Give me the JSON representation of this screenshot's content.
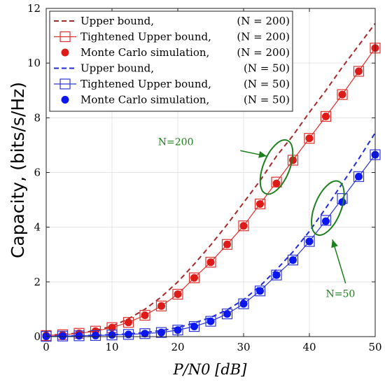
{
  "chart_data": {
    "type": "line",
    "title": "",
    "xlabel": "P/N0 [dB]",
    "ylabel": "Capacity, (bits/s/Hz)",
    "xlim": [
      0,
      50
    ],
    "ylim": [
      0,
      12
    ],
    "xticks": [
      0,
      10,
      20,
      30,
      40,
      50
    ],
    "yticks": [
      0,
      2,
      4,
      6,
      8,
      10,
      12
    ],
    "grid": true,
    "legend_position": "top-left",
    "series": [
      {
        "name": "Upper bound,",
        "param": "(N = 200)",
        "style": "dashed",
        "color": "#A52A2A",
        "x": [
          0,
          2.5,
          5,
          7.5,
          10,
          12.5,
          15,
          17.5,
          20,
          22.5,
          25,
          27.5,
          30,
          32.5,
          35,
          37.5,
          40,
          42.5,
          45,
          47.5,
          50
        ],
        "values": [
          0.05,
          0.08,
          0.13,
          0.22,
          0.38,
          0.65,
          1.0,
          1.45,
          2.0,
          2.65,
          3.35,
          4.1,
          4.9,
          5.7,
          6.6,
          7.35,
          8.2,
          9.0,
          9.85,
          10.65,
          11.45
        ]
      },
      {
        "name": "Tightened Upper bound,",
        "param": "(N = 200)",
        "style": "solid-square",
        "color": "#E0302A",
        "x": [
          0,
          2.5,
          5,
          7.5,
          10,
          12.5,
          15,
          17.5,
          20,
          22.5,
          25,
          27.5,
          30,
          32.5,
          35,
          37.5,
          40,
          42.5,
          45,
          47.5,
          50
        ],
        "values": [
          0.04,
          0.07,
          0.12,
          0.2,
          0.33,
          0.52,
          0.78,
          1.12,
          1.55,
          2.15,
          2.72,
          3.37,
          4.05,
          4.85,
          5.65,
          6.45,
          7.25,
          8.05,
          8.85,
          9.7,
          10.55
        ]
      },
      {
        "name": "Monte Carlo simulation,",
        "param": "(N = 200)",
        "style": "dots",
        "color": "#DD1C1A",
        "x": [
          0,
          2.5,
          5,
          7.5,
          10,
          12.5,
          15,
          17.5,
          20,
          22.5,
          25,
          27.5,
          30,
          32.5,
          35,
          37.5,
          40,
          42.5,
          45,
          47.5,
          50
        ],
        "values": [
          0.04,
          0.07,
          0.12,
          0.2,
          0.33,
          0.52,
          0.78,
          1.12,
          1.55,
          2.15,
          2.72,
          3.37,
          4.05,
          4.85,
          5.6,
          6.45,
          7.25,
          8.05,
          8.85,
          9.7,
          10.55
        ]
      },
      {
        "name": "Upper bound,",
        "param": "(N = 50)",
        "style": "dashed",
        "color": "#1F2BDB",
        "x": [
          0,
          2.5,
          5,
          7.5,
          10,
          12.5,
          15,
          17.5,
          20,
          22.5,
          25,
          27.5,
          30,
          32.5,
          35,
          37.5,
          40,
          42.5,
          45,
          47.5,
          50
        ],
        "values": [
          0.01,
          0.02,
          0.03,
          0.05,
          0.07,
          0.1,
          0.15,
          0.22,
          0.33,
          0.5,
          0.7,
          0.98,
          1.35,
          1.85,
          2.45,
          3.1,
          3.85,
          4.7,
          5.6,
          6.5,
          7.45
        ]
      },
      {
        "name": "Tightened Upper bound,",
        "param": "(N = 50)",
        "style": "solid-square",
        "color": "#2B36D9",
        "x": [
          0,
          2.5,
          5,
          7.5,
          10,
          12.5,
          15,
          17.5,
          20,
          22.5,
          25,
          27.5,
          30,
          32.5,
          35,
          37.5,
          40,
          42.5,
          45,
          47.5,
          50
        ],
        "values": [
          0.01,
          0.02,
          0.03,
          0.04,
          0.06,
          0.08,
          0.11,
          0.15,
          0.24,
          0.37,
          0.56,
          0.83,
          1.2,
          1.67,
          2.25,
          2.8,
          3.48,
          4.25,
          5.05,
          5.85,
          6.65
        ]
      },
      {
        "name": "Monte Carlo simulation,",
        "param": "(N = 50)",
        "style": "dots",
        "color": "#0A17F0",
        "x": [
          0,
          2.5,
          5,
          7.5,
          10,
          12.5,
          15,
          17.5,
          20,
          22.5,
          25,
          27.5,
          30,
          32.5,
          35,
          37.5,
          40,
          42.5,
          45,
          47.5,
          50
        ],
        "values": [
          0.01,
          0.02,
          0.03,
          0.04,
          0.06,
          0.08,
          0.11,
          0.15,
          0.24,
          0.37,
          0.56,
          0.83,
          1.2,
          1.67,
          2.25,
          2.8,
          3.48,
          4.22,
          4.92,
          5.85,
          6.65
        ]
      }
    ],
    "annotations": [
      {
        "text": "N=200",
        "color": "#1E7F1E",
        "ellipse_center": [
          35.0,
          6.2
        ],
        "ellipse_radius": [
          2.0,
          1.05
        ],
        "text_anchor": [
          17.0,
          7.0
        ],
        "arrow_from": [
          29.5,
          6.8
        ],
        "arrow_to": [
          33.5,
          6.6
        ]
      },
      {
        "text": "N=50",
        "color": "#1E7F1E",
        "ellipse_center": [
          42.8,
          4.7
        ],
        "ellipse_radius": [
          2.0,
          1.05
        ],
        "text_anchor": [
          42.5,
          1.45
        ],
        "arrow_from": [
          45.5,
          1.95
        ],
        "arrow_to": [
          43.5,
          3.55
        ]
      }
    ]
  }
}
